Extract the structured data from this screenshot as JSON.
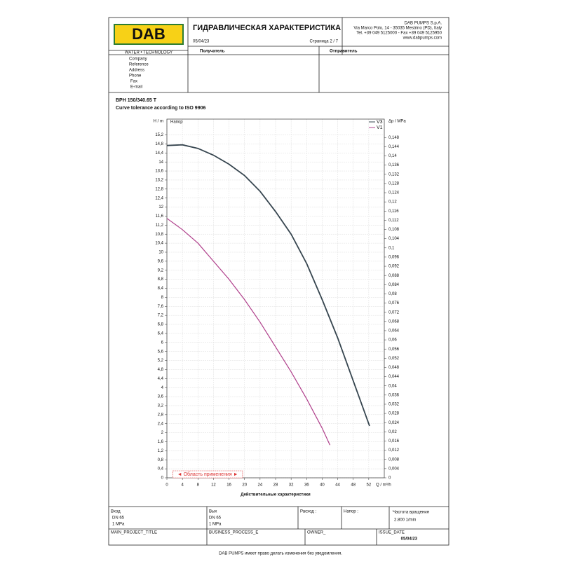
{
  "header": {
    "logo": "DAB",
    "logo_sub": "WATER • TECHNOLOGY",
    "title": "ГИДРАВЛИЧЕСКАЯ ХАРАКТЕРИСТИКА",
    "date": "05/04/23",
    "page": "Страница 2 / 7",
    "company": [
      "DAB PUMPS S.p.A.",
      "Via Marco Polo, 14 - 35035 Mestrino (PD), Italy",
      "Tel. +39 049 5125000 - Fax +39 049 5125950",
      "www.dabpumps.com"
    ],
    "recipient": "Получатель",
    "sender": "Отправитель",
    "fields": [
      "Company",
      "Reference",
      "Address",
      "Phone",
      "Fax",
      "E-mail"
    ]
  },
  "model": "BPH 150/340.65 T",
  "tolerance": "Curve tolerance according to ISO 9906",
  "chart_data": {
    "type": "line",
    "ylabel": "H / m",
    "y2label": "Δp / MPa",
    "xlabel": "Q / m³/h",
    "xtitle": "Действительные характеристики",
    "inner_label": "Напор",
    "range_label": "◄ Область применения ►",
    "range": [
      1.5,
      19.5
    ],
    "xlim": [
      0,
      56
    ],
    "xticks": [
      0,
      4,
      8,
      12,
      16,
      20,
      24,
      28,
      32,
      36,
      40,
      44,
      48,
      52
    ],
    "ylim": [
      0,
      15.9
    ],
    "yticks": [
      0,
      {
        "value": 0.4,
        "label": "0,4"
      },
      {
        "value": 0.8,
        "label": "0,8"
      },
      {
        "value": 1.2,
        "label": "1,2"
      },
      {
        "value": 1.6,
        "label": "1,6"
      },
      2,
      {
        "value": 2.4,
        "label": "2,4"
      },
      {
        "value": 2.8,
        "label": "2,8"
      },
      {
        "value": 3.2,
        "label": "3,2"
      },
      {
        "value": 3.6,
        "label": "3,6"
      },
      4,
      {
        "value": 4.4,
        "label": "4,4"
      },
      {
        "value": 4.8,
        "label": "4,8"
      },
      {
        "value": 5.2,
        "label": "5,2"
      },
      {
        "value": 5.6,
        "label": "5,6"
      },
      6,
      {
        "value": 6.4,
        "label": "6,4"
      },
      {
        "value": 6.8,
        "label": "6,8"
      },
      {
        "value": 7.2,
        "label": "7,2"
      },
      {
        "value": 7.6,
        "label": "7,6"
      },
      8,
      {
        "value": 8.4,
        "label": "8,4"
      },
      {
        "value": 8.8,
        "label": "8,8"
      },
      {
        "value": 9.2,
        "label": "9,2"
      },
      {
        "value": 9.6,
        "label": "9,6"
      },
      10,
      {
        "value": 10.4,
        "label": "10,4"
      },
      {
        "value": 10.8,
        "label": "10,8"
      },
      {
        "value": 11.2,
        "label": "11,2"
      },
      {
        "value": 11.6,
        "label": "11,6"
      },
      12,
      {
        "value": 12.4,
        "label": "12,4"
      },
      {
        "value": 12.8,
        "label": "12,8"
      },
      {
        "value": 13.2,
        "label": "13,2"
      },
      {
        "value": 13.6,
        "label": "13,6"
      },
      14,
      {
        "value": 14.4,
        "label": "14,4"
      },
      {
        "value": 14.8,
        "label": "14,8"
      },
      {
        "value": 15.2,
        "label": "15,2"
      }
    ],
    "y2lim": [
      0,
      0.156
    ],
    "y2ticks": [
      0,
      {
        "value": 0.004,
        "label": "0,004"
      },
      {
        "value": 0.008,
        "label": "0,008"
      },
      {
        "value": 0.012,
        "label": "0,012"
      },
      {
        "value": 0.016,
        "label": "0,016"
      },
      {
        "value": 0.02,
        "label": "0,02"
      },
      {
        "value": 0.024,
        "label": "0,024"
      },
      {
        "value": 0.028,
        "label": "0,028"
      },
      {
        "value": 0.032,
        "label": "0,032"
      },
      {
        "value": 0.036,
        "label": "0,036"
      },
      {
        "value": 0.04,
        "label": "0,04"
      },
      {
        "value": 0.044,
        "label": "0,044"
      },
      {
        "value": 0.048,
        "label": "0,048"
      },
      {
        "value": 0.052,
        "label": "0,052"
      },
      {
        "value": 0.056,
        "label": "0,056"
      },
      {
        "value": 0.06,
        "label": "0,06"
      },
      {
        "value": 0.064,
        "label": "0,064"
      },
      {
        "value": 0.068,
        "label": "0,068"
      },
      {
        "value": 0.072,
        "label": "0,072"
      },
      {
        "value": 0.076,
        "label": "0,076"
      },
      {
        "value": 0.08,
        "label": "0,08"
      },
      {
        "value": 0.084,
        "label": "0,084"
      },
      {
        "value": 0.088,
        "label": "0,088"
      },
      {
        "value": 0.092,
        "label": "0,092"
      },
      {
        "value": 0.096,
        "label": "0,096"
      },
      {
        "value": 0.1,
        "label": "0,1"
      },
      {
        "value": 0.104,
        "label": "0,104"
      },
      {
        "value": 0.108,
        "label": "0,108"
      },
      {
        "value": 0.112,
        "label": "0,112"
      },
      {
        "value": 0.116,
        "label": "0,116"
      },
      {
        "value": 0.12,
        "label": "0,12"
      },
      {
        "value": 0.124,
        "label": "0,124"
      },
      {
        "value": 0.128,
        "label": "0,128"
      },
      {
        "value": 0.132,
        "label": "0,132"
      },
      {
        "value": 0.136,
        "label": "0,136"
      },
      {
        "value": 0.14,
        "label": "0,14"
      },
      {
        "value": 0.144,
        "label": "0,144"
      },
      {
        "value": 0.148,
        "label": "0,148"
      }
    ],
    "grid": true,
    "series": [
      {
        "name": "V3",
        "color": "#36454f",
        "x": [
          0,
          4,
          8,
          12,
          16,
          20,
          24,
          28,
          32,
          36,
          40,
          44,
          48,
          52.2
        ],
        "values": [
          14.73,
          14.76,
          14.6,
          14.3,
          13.9,
          13.4,
          12.7,
          11.8,
          10.8,
          9.5,
          7.9,
          6.2,
          4.3,
          2.3
        ]
      },
      {
        "name": "V1",
        "color": "#b0408c",
        "x": [
          0,
          4,
          8,
          12,
          16,
          20,
          24,
          28,
          32,
          36,
          40,
          42
        ],
        "values": [
          11.5,
          11.0,
          10.4,
          9.6,
          8.8,
          7.9,
          6.9,
          5.8,
          4.7,
          3.5,
          2.2,
          1.45
        ]
      }
    ]
  },
  "footer": {
    "inlet": [
      "Вход",
      "DN 65",
      "1 MPa"
    ],
    "outlet": [
      "Вых",
      "DN 65",
      "1 MPa"
    ],
    "flow": "Расход :",
    "head": "Напор :",
    "speed": [
      "Частота вращения",
      "2.800 1/min"
    ],
    "project": "MAIN_PROJECT_TITLE",
    "process": "BUSINESS_PROCESS_E",
    "owner": "OWNER_",
    "issue": [
      "ISSUE_DATE",
      "05/04/23"
    ],
    "note": "DAB PUMPS имеет право делать изменения без уведомления."
  }
}
